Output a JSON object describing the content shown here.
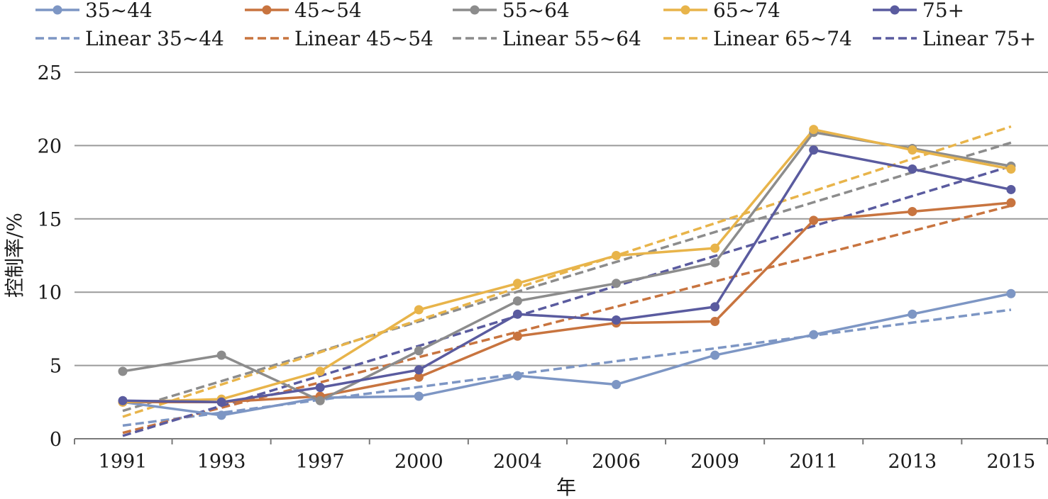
{
  "chart_data": {
    "type": "line",
    "title": "",
    "xlabel": "年",
    "ylabel": "控制率/%",
    "categories": [
      "1991",
      "1993",
      "1997",
      "2000",
      "2004",
      "2006",
      "2009",
      "2011",
      "2013",
      "2015"
    ],
    "yticks": [
      "0",
      "5",
      "10",
      "15",
      "20",
      "25"
    ],
    "ylim": [
      0,
      25
    ],
    "grid": "horizontal",
    "legend_position": "top",
    "series": [
      {
        "name": "35~44",
        "color": "#7d96c4",
        "values": [
          2.5,
          1.6,
          2.8,
          2.9,
          4.3,
          3.7,
          5.7,
          7.1,
          8.5,
          9.9
        ]
      },
      {
        "name": "45~54",
        "color": "#c8743f",
        "values": [
          2.5,
          2.5,
          2.9,
          4.2,
          7.0,
          7.9,
          8.0,
          14.9,
          15.5,
          16.1
        ]
      },
      {
        "name": "55~64",
        "color": "#8c8c8c",
        "values": [
          4.6,
          5.7,
          2.6,
          6.0,
          9.4,
          10.6,
          12.0,
          20.9,
          19.8,
          18.6
        ]
      },
      {
        "name": "65~74",
        "color": "#e8b44a",
        "values": [
          2.5,
          2.7,
          4.6,
          8.8,
          10.6,
          12.5,
          13.0,
          21.1,
          19.7,
          18.4
        ]
      },
      {
        "name": "75+",
        "color": "#5a5b9f",
        "values": [
          2.6,
          2.5,
          3.5,
          4.7,
          8.5,
          8.1,
          9.0,
          19.7,
          18.4,
          17.0
        ]
      }
    ],
    "trendlines": [
      {
        "name": "Linear 35~44",
        "color": "#7d96c4",
        "start": 0.9,
        "end": 8.8
      },
      {
        "name": "Linear 45~54",
        "color": "#c8743f",
        "start": 0.4,
        "end": 15.9
      },
      {
        "name": "Linear 55~64",
        "color": "#8c8c8c",
        "start": 1.9,
        "end": 20.2
      },
      {
        "name": "Linear 65~74",
        "color": "#e8b44a",
        "start": 1.5,
        "end": 21.3
      },
      {
        "name": "Linear 75+",
        "color": "#5a5b9f",
        "start": 0.2,
        "end": 18.6
      }
    ]
  }
}
